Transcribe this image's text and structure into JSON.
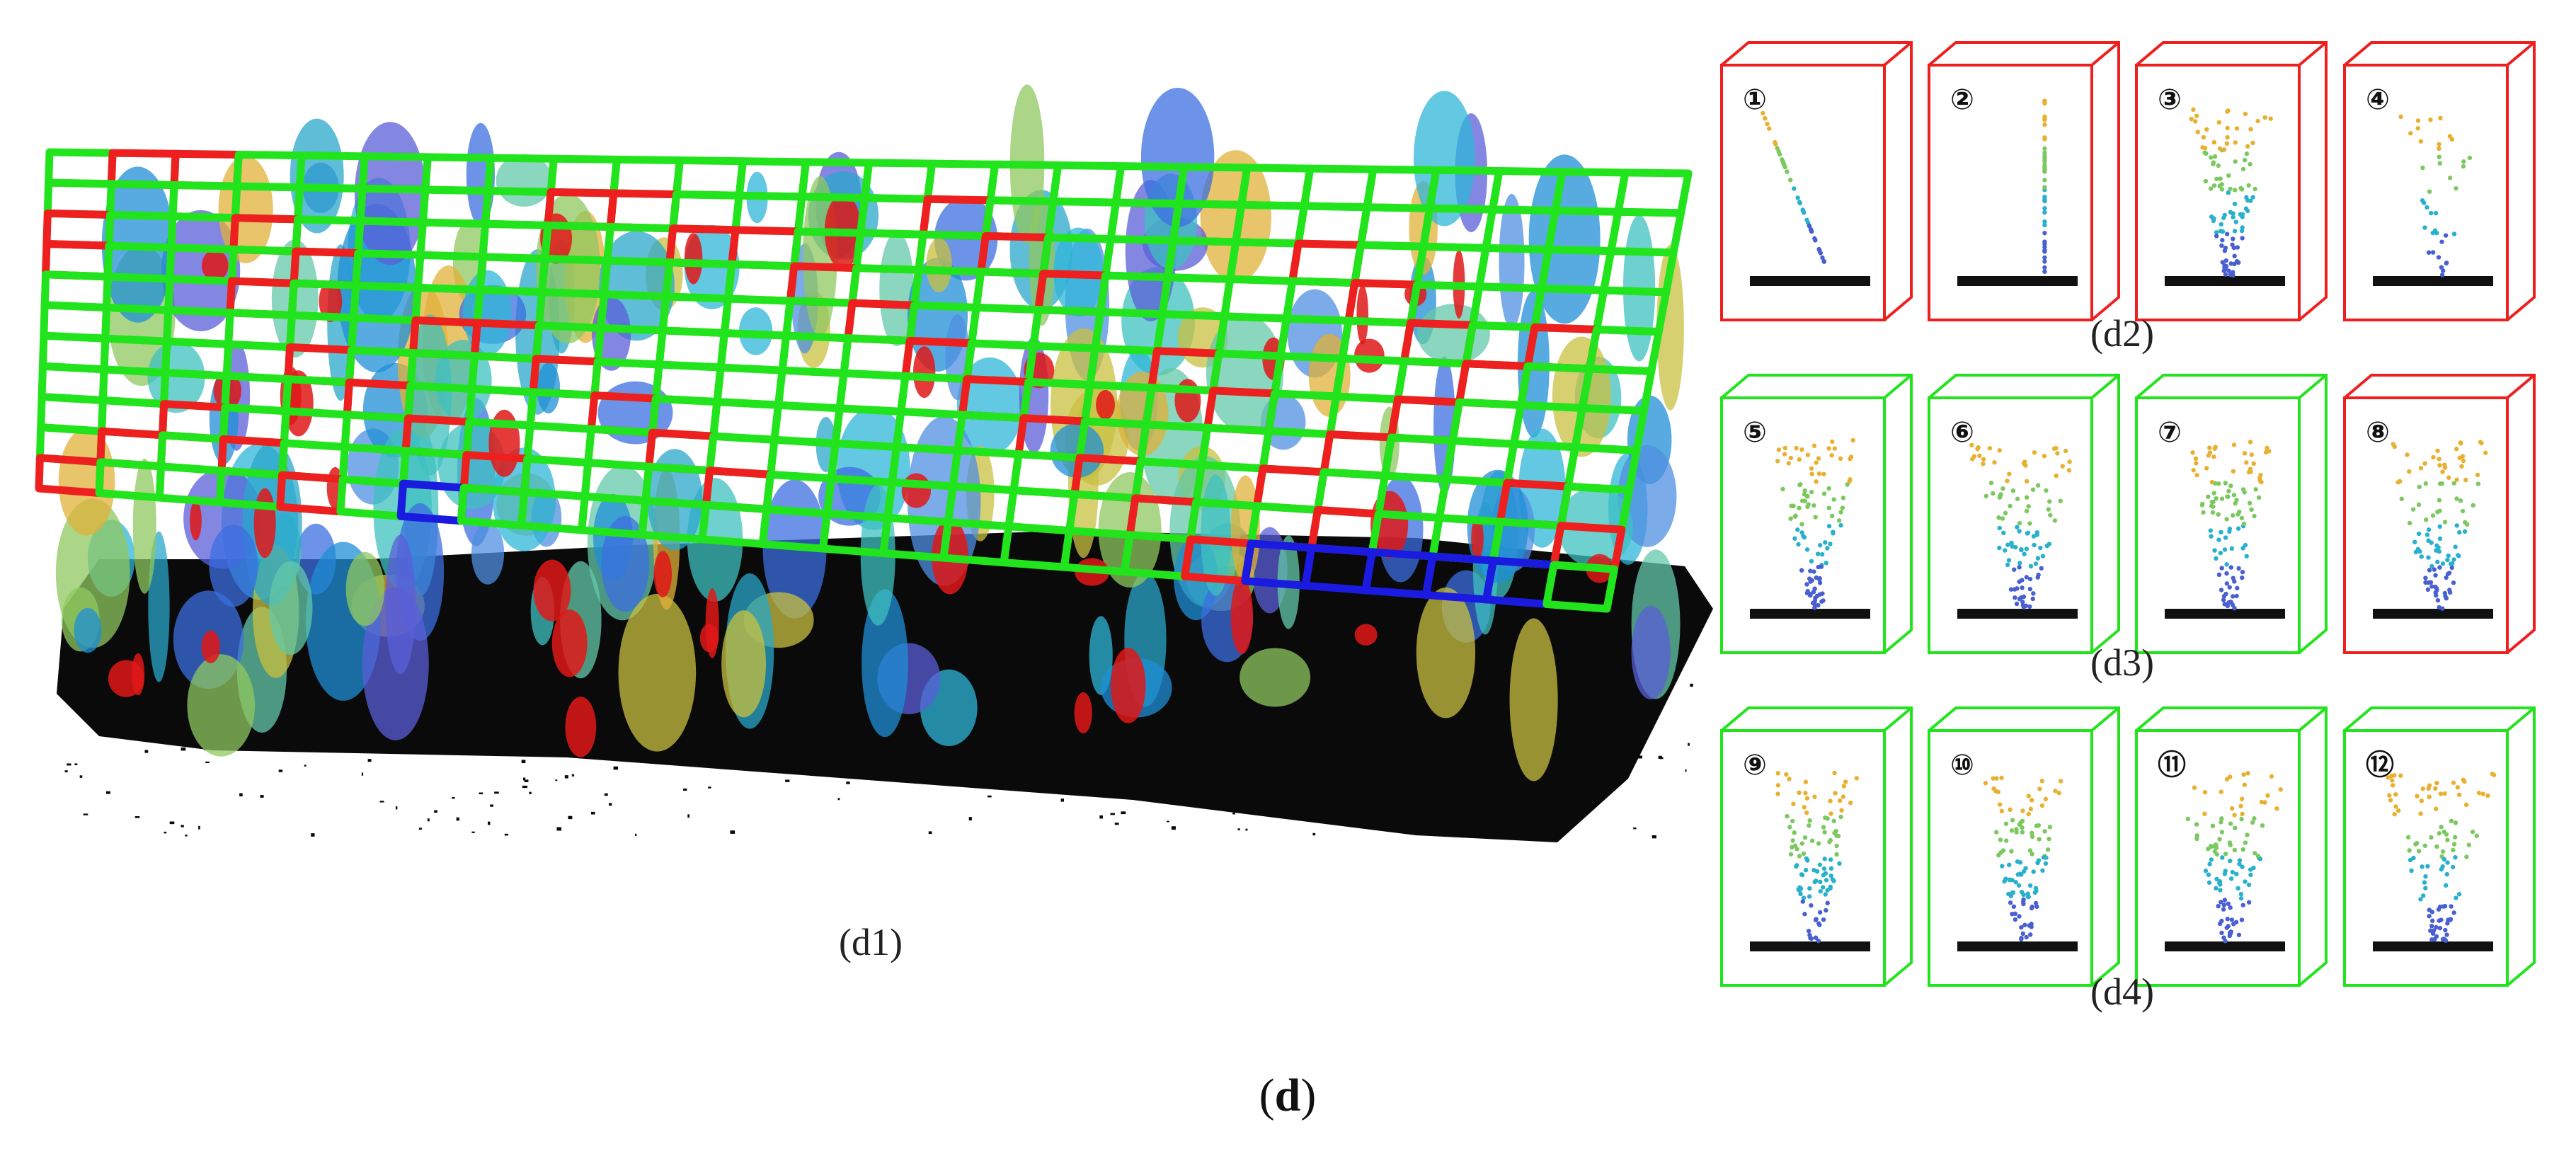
{
  "figure": {
    "panel_label_open": "(",
    "panel_label_letter": "d",
    "panel_label_close": ")"
  },
  "panels": {
    "d1": "(d1)",
    "d2": "(d2)",
    "d3": "(d3)",
    "d4": "(d4)"
  },
  "legend_colors": {
    "accepted": "#22e41c",
    "rejected": "#ee1f1f",
    "highlighted": "#1a1ae0"
  },
  "samples": [
    {
      "id": 1,
      "label": "①",
      "status": "rejected",
      "shape": "slanted"
    },
    {
      "id": 2,
      "label": "②",
      "status": "rejected",
      "shape": "pole"
    },
    {
      "id": 3,
      "label": "③",
      "status": "rejected",
      "shape": "crown"
    },
    {
      "id": 4,
      "label": "④",
      "status": "rejected",
      "shape": "sparse"
    },
    {
      "id": 5,
      "label": "⑤",
      "status": "accepted",
      "shape": "tree"
    },
    {
      "id": 6,
      "label": "⑥",
      "status": "accepted",
      "shape": "conifer"
    },
    {
      "id": 7,
      "label": "⑦",
      "status": "accepted",
      "shape": "open"
    },
    {
      "id": 8,
      "label": "⑧",
      "status": "rejected",
      "shape": "dense"
    },
    {
      "id": 9,
      "label": "⑨",
      "status": "accepted",
      "shape": "tree"
    },
    {
      "id": 10,
      "label": "⑩",
      "status": "accepted",
      "shape": "open"
    },
    {
      "id": 11,
      "label": "⑪",
      "status": "accepted",
      "shape": "conifer"
    },
    {
      "id": 12,
      "label": "⑫",
      "status": "accepted",
      "shape": "dense"
    }
  ]
}
